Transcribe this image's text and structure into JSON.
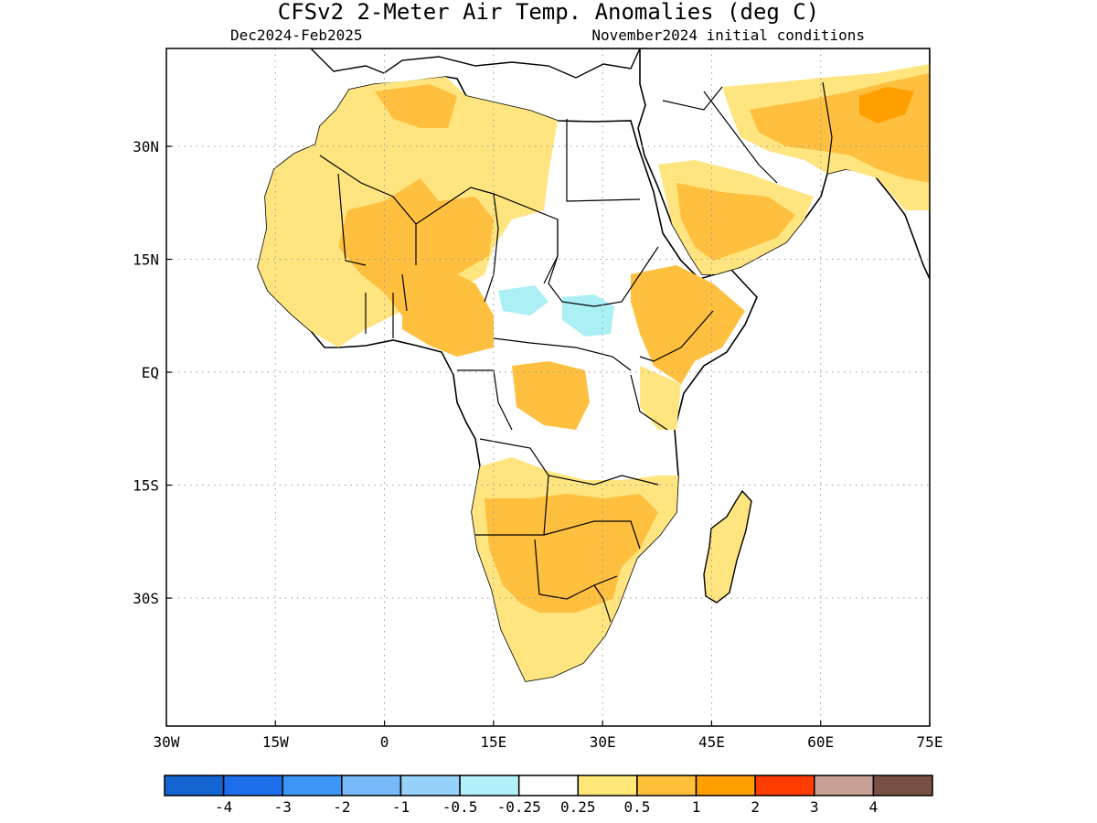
{
  "title": "CFSv2 2-Meter Air Temp. Anomalies (deg C)",
  "subtitle_left": "Dec2024-Feb2025",
  "subtitle_right": "November2024 initial conditions",
  "map": {
    "lon_range": [
      -30,
      75
    ],
    "lat_range": [
      -47,
      43
    ],
    "grid": true,
    "lon_ticks": [
      {
        "value": -30,
        "label": "30W"
      },
      {
        "value": -15,
        "label": "15W"
      },
      {
        "value": 0,
        "label": "0"
      },
      {
        "value": 15,
        "label": "15E"
      },
      {
        "value": 30,
        "label": "30E"
      },
      {
        "value": 45,
        "label": "45E"
      },
      {
        "value": 60,
        "label": "60E"
      },
      {
        "value": 75,
        "label": "75E"
      }
    ],
    "lat_ticks": [
      {
        "value": 30,
        "label": "30N"
      },
      {
        "value": 15,
        "label": "15N"
      },
      {
        "value": 0,
        "label": "EQ"
      },
      {
        "value": -15,
        "label": "15S"
      },
      {
        "value": -30,
        "label": "30S"
      }
    ]
  },
  "colors": {
    "land_neutral": "#ffffff",
    "warm_025": "#ffe57f",
    "warm_05": "#ffbf3f",
    "warm_1": "#ffa000",
    "cool_025": "#aaf0f5",
    "coast": "#000000"
  },
  "legend": {
    "colors": [
      "#1464d2",
      "#1e6eeb",
      "#3c96f5",
      "#78b9fa",
      "#96d2fa",
      "#b4f0fa",
      "#ffffff",
      "#ffe878",
      "#ffc03c",
      "#ffa000",
      "#ff3c00",
      "#c8a096",
      "#785046"
    ],
    "labels": [
      "-4",
      "-3",
      "-2",
      "-1",
      "-0.5",
      "-0.25",
      "0.25",
      "0.5",
      "1",
      "2",
      "3",
      "4"
    ]
  }
}
